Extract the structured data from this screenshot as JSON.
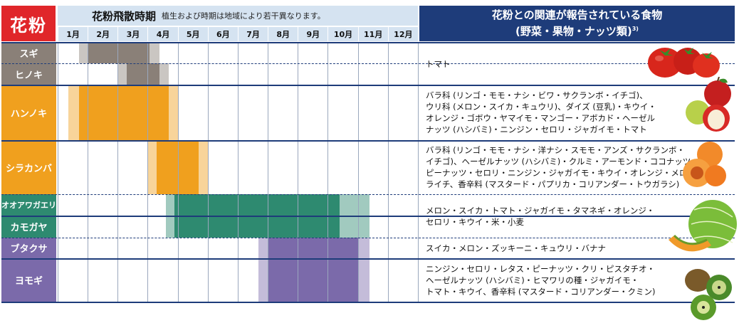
{
  "header": {
    "title": "花粉",
    "period_title": "花粉飛散時期",
    "period_note": "植生および時期は地域により若干異なります。",
    "food_title_line1": "花粉との関連が報告されている食物",
    "food_title_line2": "(野菜・果物・ナッツ類)",
    "food_title_sup": "3)"
  },
  "months": [
    "1月",
    "2月",
    "3月",
    "4月",
    "5月",
    "6月",
    "7月",
    "8月",
    "9月",
    "10月",
    "11月",
    "12月"
  ],
  "plants": [
    {
      "name": "スギ",
      "color": "#8a8078"
    },
    {
      "name": "ヒノキ",
      "color": "#8a8078"
    },
    {
      "name": "ハンノキ",
      "color": "#f0a01e"
    },
    {
      "name": "シラカンバ",
      "color": "#f0a01e"
    },
    {
      "name": "オオアワガエリ",
      "color": "#2e8a70"
    },
    {
      "name": "カモガヤ",
      "color": "#2e8a70"
    },
    {
      "name": "ブタクサ",
      "color": "#7b6aaa"
    },
    {
      "name": "ヨモギ",
      "color": "#7b6aaa"
    }
  ],
  "pollen_periods": [
    {
      "plant": "スギ",
      "light": [
        1.7,
        4.4
      ],
      "dark": [
        2.0,
        4.05
      ]
    },
    {
      "plant": "ヒノキ",
      "light": [
        3.0,
        4.7
      ],
      "dark": [
        3.3,
        4.4
      ]
    },
    {
      "plant": "ハンノキ",
      "light": [
        1.35,
        5.0
      ],
      "dark": [
        1.7,
        4.7
      ]
    },
    {
      "plant": "シラカンバ",
      "light": [
        4.0,
        6.0
      ],
      "dark": [
        4.3,
        5.7
      ]
    },
    {
      "plant": "オオアワガエリ",
      "light": [
        4.6,
        11.4
      ],
      "dark": [
        4.9,
        10.4
      ]
    },
    {
      "plant": "カモガヤ",
      "light": [
        4.6,
        11.4
      ],
      "dark": [
        4.9,
        10.4
      ]
    },
    {
      "plant": "ブタクサ",
      "light": [
        7.7,
        11.4
      ],
      "dark": [
        8.0,
        11.0
      ]
    },
    {
      "plant": "ヨモギ",
      "light": [
        7.7,
        11.4
      ],
      "dark": [
        8.0,
        11.0
      ]
    }
  ],
  "foods": [
    {
      "lines": [
        "トマト"
      ]
    },
    {
      "lines": [
        "バラ科 (リンゴ・モモ・ナシ・ビワ・サクランボ・イチゴ)、",
        "ウリ科 (メロン・スイカ・キュウリ)、ダイズ (豆乳)・キウイ・",
        "オレンジ・ゴボウ・ヤマイモ・マンゴー・アボカド・ヘーゼル",
        "ナッツ (ハシバミ)・ニンジン・セロリ・ジャガイモ・トマト"
      ]
    },
    {
      "lines": [
        "バラ科 (リンゴ・モモ・ナシ・洋ナシ・スモモ・アンズ・サクランボ・",
        "イチゴ)、ヘーゼルナッツ (ハシバミ)・クルミ・アーモンド・ココナッツ・",
        "ピーナッツ・セロリ・ニンジン・ジャガイモ・キウイ・オレンジ・メロン・",
        "ライチ、香辛料 (マスタード・パプリカ・コリアンダー・トウガラシ)"
      ]
    },
    {
      "lines": [
        "メロン・スイカ・トマト・ジャガイモ・タマネギ・オレンジ・",
        "セロリ・キウイ・米・小麦"
      ]
    },
    {
      "lines": [
        "スイカ・メロン・ズッキーニ・キュウリ・バナナ"
      ]
    },
    {
      "lines": [
        "ニンジン・セロリ・レタス・ピーナッツ・クリ・ピスタチオ・",
        "ヘーゼルナッツ (ハシバミ)・ヒマワリの種・ジャガイモ・",
        "トマト・キウイ、香辛料 (マスタード・コリアンダー・クミン)"
      ]
    }
  ],
  "food_images": [
    "tomato-image",
    "apple-image",
    "peach-image",
    "melon-image",
    "kiwi-image"
  ]
}
